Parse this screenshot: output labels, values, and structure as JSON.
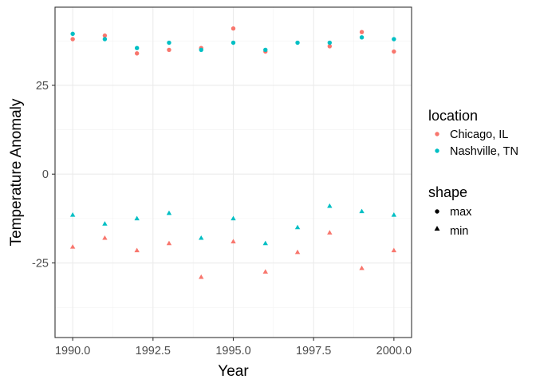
{
  "chart_data": {
    "type": "scatter",
    "xlabel": "Year",
    "ylabel": "Temperature Anomaly",
    "xlim": [
      1989.45,
      2000.55
    ],
    "ylim": [
      -46,
      47
    ],
    "x_ticks": [
      1990,
      1992.5,
      1995,
      1997.5,
      2000
    ],
    "x_tick_labels": [
      "1990.0",
      "1992.5",
      "1995.0",
      "1997.5",
      "2000.0"
    ],
    "y_ticks": [
      -25,
      0,
      25
    ],
    "y_tick_labels": [
      "-25",
      "0",
      "25"
    ],
    "grid": true,
    "legend_position": "right",
    "legend": {
      "color_title": "location",
      "color_entries": [
        {
          "label": "Chicago, IL",
          "color": "#F8766D"
        },
        {
          "label": "Nashville, TN",
          "color": "#00BFC4"
        }
      ],
      "shape_title": "shape",
      "shape_entries": [
        {
          "label": "max",
          "shape": "circle"
        },
        {
          "label": "min",
          "shape": "triangle"
        }
      ]
    },
    "x": [
      1990,
      1991,
      1992,
      1993,
      1994,
      1995,
      1996,
      1997,
      1998,
      1999,
      2000
    ],
    "series": [
      {
        "location": "Chicago, IL",
        "shape": "max",
        "values": [
          38,
          39,
          34,
          35,
          35.5,
          41,
          34.5,
          null,
          36,
          40,
          34.5
        ]
      },
      {
        "location": "Nashville, TN",
        "shape": "max",
        "values": [
          39.5,
          38,
          35.5,
          37,
          35,
          37,
          35,
          37,
          37,
          38.5,
          38
        ]
      },
      {
        "location": "Chicago, IL",
        "shape": "min",
        "values": [
          -20.5,
          -18,
          -21.5,
          -19.5,
          -29,
          -19,
          -27.5,
          -22,
          -16.5,
          -26.5,
          -21.5
        ]
      },
      {
        "location": "Nashville, TN",
        "shape": "min",
        "values": [
          -11.5,
          -14,
          -12.5,
          -11,
          -18,
          -12.5,
          -19.5,
          -15,
          -9,
          -10.5,
          -11.5
        ]
      }
    ]
  }
}
